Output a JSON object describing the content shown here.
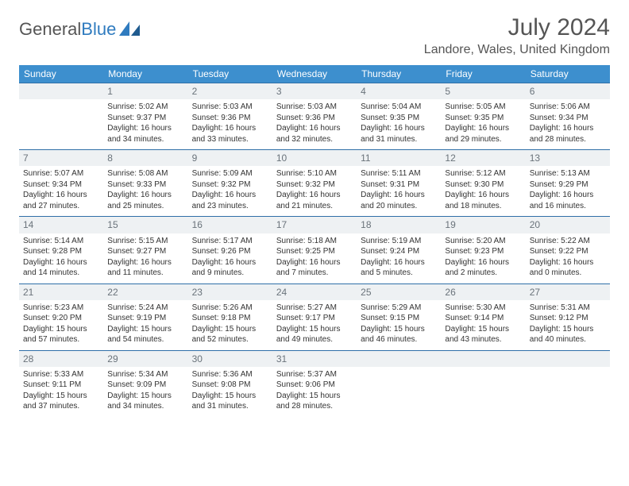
{
  "logo": {
    "word1": "General",
    "word2": "Blue"
  },
  "title": "July 2024",
  "location": "Landore, Wales, United Kingdom",
  "colors": {
    "header_bg": "#3d8fce",
    "header_text": "#ffffff",
    "row_divider": "#2f6fa8",
    "daynum_bg": "#eef1f3",
    "daynum_text": "#6a737b",
    "body_text": "#333333",
    "logo_blue": "#2f7bbf"
  },
  "daynames": [
    "Sunday",
    "Monday",
    "Tuesday",
    "Wednesday",
    "Thursday",
    "Friday",
    "Saturday"
  ],
  "weeks": [
    [
      null,
      {
        "n": "1",
        "sr": "Sunrise: 5:02 AM",
        "ss": "Sunset: 9:37 PM",
        "d1": "Daylight: 16 hours",
        "d2": "and 34 minutes."
      },
      {
        "n": "2",
        "sr": "Sunrise: 5:03 AM",
        "ss": "Sunset: 9:36 PM",
        "d1": "Daylight: 16 hours",
        "d2": "and 33 minutes."
      },
      {
        "n": "3",
        "sr": "Sunrise: 5:03 AM",
        "ss": "Sunset: 9:36 PM",
        "d1": "Daylight: 16 hours",
        "d2": "and 32 minutes."
      },
      {
        "n": "4",
        "sr": "Sunrise: 5:04 AM",
        "ss": "Sunset: 9:35 PM",
        "d1": "Daylight: 16 hours",
        "d2": "and 31 minutes."
      },
      {
        "n": "5",
        "sr": "Sunrise: 5:05 AM",
        "ss": "Sunset: 9:35 PM",
        "d1": "Daylight: 16 hours",
        "d2": "and 29 minutes."
      },
      {
        "n": "6",
        "sr": "Sunrise: 5:06 AM",
        "ss": "Sunset: 9:34 PM",
        "d1": "Daylight: 16 hours",
        "d2": "and 28 minutes."
      }
    ],
    [
      {
        "n": "7",
        "sr": "Sunrise: 5:07 AM",
        "ss": "Sunset: 9:34 PM",
        "d1": "Daylight: 16 hours",
        "d2": "and 27 minutes."
      },
      {
        "n": "8",
        "sr": "Sunrise: 5:08 AM",
        "ss": "Sunset: 9:33 PM",
        "d1": "Daylight: 16 hours",
        "d2": "and 25 minutes."
      },
      {
        "n": "9",
        "sr": "Sunrise: 5:09 AM",
        "ss": "Sunset: 9:32 PM",
        "d1": "Daylight: 16 hours",
        "d2": "and 23 minutes."
      },
      {
        "n": "10",
        "sr": "Sunrise: 5:10 AM",
        "ss": "Sunset: 9:32 PM",
        "d1": "Daylight: 16 hours",
        "d2": "and 21 minutes."
      },
      {
        "n": "11",
        "sr": "Sunrise: 5:11 AM",
        "ss": "Sunset: 9:31 PM",
        "d1": "Daylight: 16 hours",
        "d2": "and 20 minutes."
      },
      {
        "n": "12",
        "sr": "Sunrise: 5:12 AM",
        "ss": "Sunset: 9:30 PM",
        "d1": "Daylight: 16 hours",
        "d2": "and 18 minutes."
      },
      {
        "n": "13",
        "sr": "Sunrise: 5:13 AM",
        "ss": "Sunset: 9:29 PM",
        "d1": "Daylight: 16 hours",
        "d2": "and 16 minutes."
      }
    ],
    [
      {
        "n": "14",
        "sr": "Sunrise: 5:14 AM",
        "ss": "Sunset: 9:28 PM",
        "d1": "Daylight: 16 hours",
        "d2": "and 14 minutes."
      },
      {
        "n": "15",
        "sr": "Sunrise: 5:15 AM",
        "ss": "Sunset: 9:27 PM",
        "d1": "Daylight: 16 hours",
        "d2": "and 11 minutes."
      },
      {
        "n": "16",
        "sr": "Sunrise: 5:17 AM",
        "ss": "Sunset: 9:26 PM",
        "d1": "Daylight: 16 hours",
        "d2": "and 9 minutes."
      },
      {
        "n": "17",
        "sr": "Sunrise: 5:18 AM",
        "ss": "Sunset: 9:25 PM",
        "d1": "Daylight: 16 hours",
        "d2": "and 7 minutes."
      },
      {
        "n": "18",
        "sr": "Sunrise: 5:19 AM",
        "ss": "Sunset: 9:24 PM",
        "d1": "Daylight: 16 hours",
        "d2": "and 5 minutes."
      },
      {
        "n": "19",
        "sr": "Sunrise: 5:20 AM",
        "ss": "Sunset: 9:23 PM",
        "d1": "Daylight: 16 hours",
        "d2": "and 2 minutes."
      },
      {
        "n": "20",
        "sr": "Sunrise: 5:22 AM",
        "ss": "Sunset: 9:22 PM",
        "d1": "Daylight: 16 hours",
        "d2": "and 0 minutes."
      }
    ],
    [
      {
        "n": "21",
        "sr": "Sunrise: 5:23 AM",
        "ss": "Sunset: 9:20 PM",
        "d1": "Daylight: 15 hours",
        "d2": "and 57 minutes."
      },
      {
        "n": "22",
        "sr": "Sunrise: 5:24 AM",
        "ss": "Sunset: 9:19 PM",
        "d1": "Daylight: 15 hours",
        "d2": "and 54 minutes."
      },
      {
        "n": "23",
        "sr": "Sunrise: 5:26 AM",
        "ss": "Sunset: 9:18 PM",
        "d1": "Daylight: 15 hours",
        "d2": "and 52 minutes."
      },
      {
        "n": "24",
        "sr": "Sunrise: 5:27 AM",
        "ss": "Sunset: 9:17 PM",
        "d1": "Daylight: 15 hours",
        "d2": "and 49 minutes."
      },
      {
        "n": "25",
        "sr": "Sunrise: 5:29 AM",
        "ss": "Sunset: 9:15 PM",
        "d1": "Daylight: 15 hours",
        "d2": "and 46 minutes."
      },
      {
        "n": "26",
        "sr": "Sunrise: 5:30 AM",
        "ss": "Sunset: 9:14 PM",
        "d1": "Daylight: 15 hours",
        "d2": "and 43 minutes."
      },
      {
        "n": "27",
        "sr": "Sunrise: 5:31 AM",
        "ss": "Sunset: 9:12 PM",
        "d1": "Daylight: 15 hours",
        "d2": "and 40 minutes."
      }
    ],
    [
      {
        "n": "28",
        "sr": "Sunrise: 5:33 AM",
        "ss": "Sunset: 9:11 PM",
        "d1": "Daylight: 15 hours",
        "d2": "and 37 minutes."
      },
      {
        "n": "29",
        "sr": "Sunrise: 5:34 AM",
        "ss": "Sunset: 9:09 PM",
        "d1": "Daylight: 15 hours",
        "d2": "and 34 minutes."
      },
      {
        "n": "30",
        "sr": "Sunrise: 5:36 AM",
        "ss": "Sunset: 9:08 PM",
        "d1": "Daylight: 15 hours",
        "d2": "and 31 minutes."
      },
      {
        "n": "31",
        "sr": "Sunrise: 5:37 AM",
        "ss": "Sunset: 9:06 PM",
        "d1": "Daylight: 15 hours",
        "d2": "and 28 minutes."
      },
      null,
      null,
      null
    ]
  ]
}
